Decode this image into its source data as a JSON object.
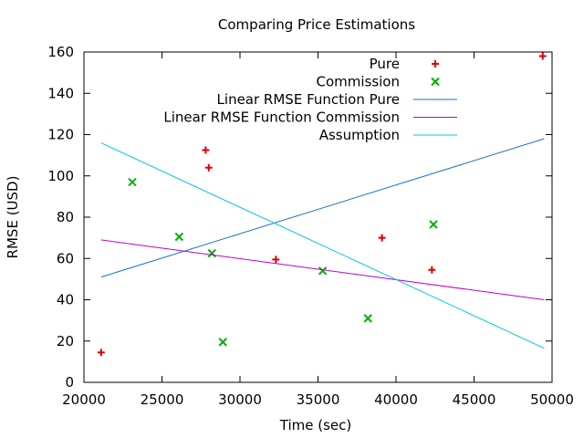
{
  "chart_data": {
    "type": "scatter",
    "title": "Comparing Price Estimations",
    "xlabel": "Time (sec)",
    "ylabel": "RMSE (USD)",
    "xlim": [
      20000,
      50000
    ],
    "ylim": [
      0,
      160
    ],
    "x_ticks": [
      20000,
      25000,
      30000,
      35000,
      40000,
      45000,
      50000
    ],
    "y_ticks": [
      0,
      20,
      40,
      60,
      80,
      100,
      120,
      140,
      160
    ],
    "grid": false,
    "legend_position": "top-right",
    "series": [
      {
        "name": "Pure",
        "kind": "points",
        "marker": "plus",
        "color": "#e00000",
        "points": [
          [
            21100,
            14.5
          ],
          [
            27800,
            112.5
          ],
          [
            28000,
            104
          ],
          [
            32300,
            59.5
          ],
          [
            39100,
            70
          ],
          [
            42300,
            54.5
          ],
          [
            49400,
            158
          ]
        ]
      },
      {
        "name": "Commission",
        "kind": "points",
        "marker": "cross",
        "color": "#00b000",
        "points": [
          [
            23100,
            97
          ],
          [
            26100,
            70.5
          ],
          [
            28200,
            62.5
          ],
          [
            28900,
            19.5
          ],
          [
            35300,
            54
          ],
          [
            38200,
            31
          ],
          [
            42400,
            76.5
          ]
        ]
      },
      {
        "name": "Linear RMSE Function Pure",
        "kind": "line",
        "color": "#1a6fd0",
        "points": [
          [
            21100,
            51
          ],
          [
            49500,
            118
          ]
        ]
      },
      {
        "name": "Linear RMSE Function Commission",
        "kind": "line",
        "color": "#c000c8",
        "points": [
          [
            21100,
            69
          ],
          [
            49500,
            40
          ]
        ]
      },
      {
        "name": "Assumption",
        "kind": "line",
        "color": "#00c8d8",
        "points": [
          [
            21100,
            116
          ],
          [
            49500,
            16.5
          ]
        ]
      }
    ]
  }
}
